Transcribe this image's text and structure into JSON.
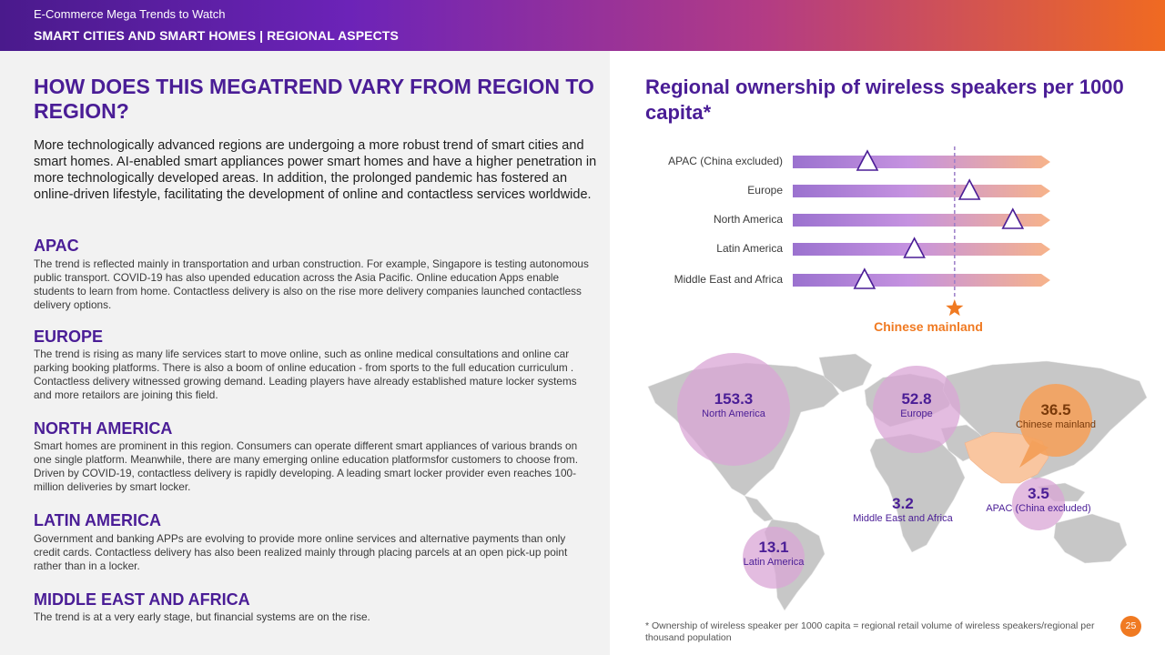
{
  "header": {
    "kicker": "E-Commerce Mega Trends to Watch",
    "section": "SMART CITIES AND SMART HOMES | REGIONAL ASPECTS"
  },
  "left": {
    "question": "HOW DOES THIS MEGATREND VARY FROM REGION TO REGION?",
    "intro": "More technologically advanced regions are undergoing a more robust trend of smart cities and smart homes. AI-enabled smart appliances power smart homes and have a higher penetration in more technologically developed areas. In addition, the prolonged pandemic has fostered an online-driven lifestyle, facilitating the development of online and contactless services worldwide.",
    "regions": [
      {
        "heading": "APAC",
        "text": "The trend is reflected mainly in transportation and urban construction. For example, Singapore is testing autonomous public transport. COVID-19 has also upended education across the Asia Pacific. Online education Apps enable students to learn from home. Contactless delivery is also on the rise more delivery companies launched contactless delivery options."
      },
      {
        "heading": "EUROPE",
        "text": "The trend is rising as many life services start to move online, such as online medical consultations and online car parking booking platforms. There is also a boom of online education - from sports to the full education curriculum . Contactless delivery witnessed growing demand. Leading players have already established mature locker systems and more retailors are joining this field."
      },
      {
        "heading": "NORTH AMERICA",
        "text": "Smart homes are prominent in this region. Consumers can operate different smart appliances of various brands on one single platform. Meanwhile, there are many emerging online education platformsfor customers to choose from. Driven by COVID-19, contactless delivery is rapidly developing. A leading smart locker provider even reaches 100-million deliveries by smart locker."
      },
      {
        "heading": "LATIN AMERICA",
        "text": "Government and banking APPs are evolving to provide more online services and alternative payments than only credit cards. Contactless delivery has also been realized mainly through placing parcels at an open pick-up point rather than in a locker."
      },
      {
        "heading": "MIDDLE EAST AND AFRICA",
        "text": "The trend is at a very early stage, but financial systems are on the rise."
      }
    ]
  },
  "chart_data": {
    "type": "bar",
    "title": "Regional ownership of wireless speakers per 1000 capita*",
    "categories": [
      "APAC (China excluded)",
      "Europe",
      "North America",
      "Latin America",
      "Middle East and Africa"
    ],
    "values": [
      3.5,
      52.8,
      153.3,
      13.1,
      3.2
    ],
    "reference": {
      "name": "Chinese mainland",
      "value": 36.5
    },
    "bubbles": [
      {
        "value": "153.3",
        "name": "North America",
        "kind": "purple"
      },
      {
        "value": "52.8",
        "name": "Europe",
        "kind": "purple"
      },
      {
        "value": "36.5",
        "name": "Chinese mainland",
        "kind": "orange"
      },
      {
        "value": "3.2",
        "name": "Middle East and Africa",
        "kind": "purple"
      },
      {
        "value": "3.5",
        "name": "APAC (China excluded)",
        "kind": "purple"
      },
      {
        "value": "13.1",
        "name": "Latin America",
        "kind": "purple"
      }
    ]
  },
  "colors": {
    "accent": "#4a1d96",
    "orange": "#f07a22",
    "bubble": "#d9a6d6"
  },
  "footnote": "* Ownership of wireless speaker per 1000 capita = regional retail volume of wireless speakers/regional per thousand population",
  "page_number": "25"
}
